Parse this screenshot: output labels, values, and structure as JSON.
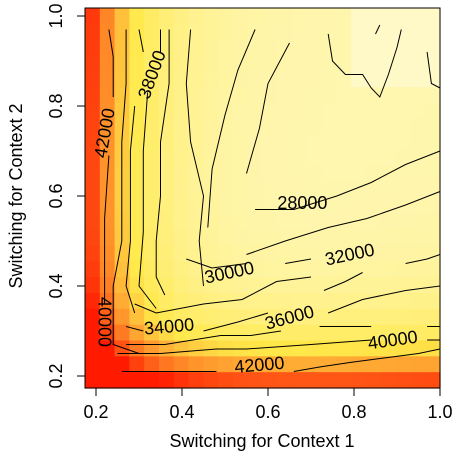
{
  "chart_data": {
    "type": "heatmap",
    "subtype": "filled contour with contour lines",
    "title": "",
    "xlabel": "Switching for Context 1",
    "ylabel": "Switching for Context 2",
    "xlim": [
      0.2,
      1.0
    ],
    "ylim": [
      0.2,
      1.0
    ],
    "x_ticks": [
      {
        "value": 0.2,
        "label": "0.2"
      },
      {
        "value": 0.4,
        "label": "0.4"
      },
      {
        "value": 0.6,
        "label": "0.6"
      },
      {
        "value": 0.8,
        "label": "0.8"
      },
      {
        "value": 1.0,
        "label": "1.0"
      }
    ],
    "y_ticks": [
      {
        "value": 0.2,
        "label": "0.2"
      },
      {
        "value": 0.4,
        "label": "0.4"
      },
      {
        "value": 0.6,
        "label": "0.6"
      },
      {
        "value": 0.8,
        "label": "0.8"
      },
      {
        "value": 1.0,
        "label": "1.0"
      }
    ],
    "color_scale": {
      "low": "#fffde8",
      "mid": "#ffe94a",
      "high": "#ff1a00"
    },
    "contour_labels": [
      {
        "text": "28000",
        "x": 0.68,
        "y": 0.585,
        "angle": 0
      },
      {
        "text": "30000",
        "x": 0.51,
        "y": 0.43,
        "angle": -12
      },
      {
        "text": "32000",
        "x": 0.79,
        "y": 0.47,
        "angle": -12
      },
      {
        "text": "34000",
        "x": 0.37,
        "y": 0.31,
        "angle": -5
      },
      {
        "text": "36000",
        "x": 0.65,
        "y": 0.33,
        "angle": -15
      },
      {
        "text": "38000",
        "x": 0.33,
        "y": 0.87,
        "angle": -70
      },
      {
        "text": "40000",
        "x": 0.22,
        "y": 0.32,
        "angle": 90
      },
      {
        "text": "40000",
        "x": 0.89,
        "y": 0.28,
        "angle": -8
      },
      {
        "text": "42000",
        "x": 0.22,
        "y": 0.74,
        "angle": -80
      },
      {
        "text": "42000",
        "x": 0.58,
        "y": 0.225,
        "angle": -5
      }
    ],
    "contour_lines": [
      [
        [
          0.42,
          0.97
        ],
        [
          0.41,
          0.85
        ],
        [
          0.42,
          0.72
        ],
        [
          0.45,
          0.6
        ],
        [
          0.44,
          0.5
        ],
        [
          0.45,
          0.4
        ]
      ],
      [
        [
          0.57,
          0.97
        ],
        [
          0.53,
          0.88
        ],
        [
          0.5,
          0.78
        ],
        [
          0.47,
          0.66
        ],
        [
          0.46,
          0.53
        ]
      ],
      [
        [
          0.65,
          0.94
        ],
        [
          0.6,
          0.85
        ],
        [
          0.58,
          0.75
        ],
        [
          0.55,
          0.65
        ]
      ],
      [
        [
          0.57,
          0.57
        ],
        [
          0.66,
          0.57
        ],
        [
          0.76,
          0.6
        ],
        [
          0.84,
          0.63
        ],
        [
          0.92,
          0.67
        ],
        [
          1.0,
          0.7
        ]
      ],
      [
        [
          0.55,
          0.47
        ],
        [
          0.64,
          0.5
        ],
        [
          0.74,
          0.53
        ],
        [
          0.83,
          0.55
        ],
        [
          0.92,
          0.58
        ],
        [
          1.0,
          0.61
        ]
      ],
      [
        [
          0.41,
          0.46
        ],
        [
          0.47,
          0.44
        ],
        [
          0.55,
          0.45
        ]
      ],
      [
        [
          0.64,
          0.45
        ],
        [
          0.7,
          0.46
        ]
      ],
      [
        [
          0.73,
          0.39
        ],
        [
          0.78,
          0.41
        ],
        [
          0.82,
          0.43
        ]
      ],
      [
        [
          0.92,
          0.45
        ],
        [
          0.97,
          0.46
        ],
        [
          1.0,
          0.47
        ]
      ],
      [
        [
          0.29,
          0.36
        ],
        [
          0.34,
          0.34
        ],
        [
          0.45,
          0.36
        ],
        [
          0.54,
          0.37
        ],
        [
          0.62,
          0.41
        ],
        [
          0.7,
          0.42
        ]
      ],
      [
        [
          0.45,
          0.3
        ],
        [
          0.53,
          0.32
        ],
        [
          0.6,
          0.34
        ]
      ],
      [
        [
          0.74,
          0.34
        ],
        [
          0.82,
          0.37
        ],
        [
          0.92,
          0.39
        ],
        [
          1.0,
          0.4
        ]
      ],
      [
        [
          0.27,
          0.31
        ],
        [
          0.31,
          0.3
        ]
      ],
      [
        [
          0.27,
          0.27
        ],
        [
          0.36,
          0.27
        ],
        [
          0.49,
          0.29
        ],
        [
          0.56,
          0.29
        ],
        [
          0.63,
          0.3
        ]
      ],
      [
        [
          0.72,
          0.31
        ],
        [
          0.79,
          0.31
        ],
        [
          0.84,
          0.31
        ]
      ],
      [
        [
          0.97,
          0.31
        ],
        [
          1.0,
          0.31
        ]
      ],
      [
        [
          0.25,
          0.25
        ],
        [
          0.35,
          0.25
        ],
        [
          0.48,
          0.26
        ],
        [
          0.55,
          0.26
        ],
        [
          0.7,
          0.27
        ],
        [
          0.84,
          0.28
        ]
      ],
      [
        [
          0.97,
          0.28
        ],
        [
          1.0,
          0.28
        ]
      ],
      [
        [
          0.26,
          0.21
        ],
        [
          0.35,
          0.21
        ],
        [
          0.48,
          0.21
        ]
      ],
      [
        [
          0.66,
          0.21
        ],
        [
          0.72,
          0.22
        ],
        [
          0.79,
          0.23
        ],
        [
          0.87,
          0.24
        ],
        [
          0.95,
          0.25
        ],
        [
          1.0,
          0.26
        ]
      ],
      [
        [
          0.23,
          0.97
        ],
        [
          0.24,
          0.91
        ],
        [
          0.24,
          0.82
        ]
      ],
      [
        [
          0.23,
          0.69
        ],
        [
          0.22,
          0.55
        ],
        [
          0.22,
          0.4
        ],
        [
          0.22,
          0.36
        ]
      ],
      [
        [
          0.27,
          0.97
        ],
        [
          0.27,
          0.85
        ],
        [
          0.26,
          0.72
        ],
        [
          0.26,
          0.6
        ],
        [
          0.26,
          0.5
        ],
        [
          0.24,
          0.4
        ],
        [
          0.24,
          0.27
        ],
        [
          0.3,
          0.25
        ]
      ],
      [
        [
          0.3,
          0.97
        ],
        [
          0.31,
          0.92
        ]
      ],
      [
        [
          0.29,
          0.8
        ],
        [
          0.28,
          0.7
        ],
        [
          0.28,
          0.6
        ],
        [
          0.28,
          0.5
        ],
        [
          0.27,
          0.4
        ],
        [
          0.29,
          0.34
        ]
      ],
      [
        [
          0.35,
          0.97
        ],
        [
          0.35,
          0.92
        ]
      ],
      [
        [
          0.32,
          0.83
        ],
        [
          0.31,
          0.7
        ],
        [
          0.31,
          0.6
        ],
        [
          0.31,
          0.52
        ],
        [
          0.3,
          0.4
        ],
        [
          0.34,
          0.35
        ]
      ],
      [
        [
          0.37,
          0.97
        ],
        [
          0.37,
          0.85
        ],
        [
          0.35,
          0.72
        ],
        [
          0.35,
          0.6
        ],
        [
          0.34,
          0.5
        ],
        [
          0.34,
          0.42
        ],
        [
          0.36,
          0.38
        ]
      ],
      [
        [
          0.74,
          0.96
        ],
        [
          0.75,
          0.9
        ],
        [
          0.78,
          0.87
        ],
        [
          0.82,
          0.87
        ],
        [
          0.84,
          0.84
        ],
        [
          0.86,
          0.82
        ],
        [
          0.88,
          0.87
        ],
        [
          0.9,
          0.93
        ],
        [
          0.91,
          0.97
        ]
      ],
      [
        [
          0.97,
          0.92
        ],
        [
          0.98,
          0.85
        ],
        [
          1.0,
          0.84
        ]
      ],
      [
        [
          0.85,
          0.96
        ],
        [
          0.86,
          0.98
        ]
      ]
    ]
  }
}
